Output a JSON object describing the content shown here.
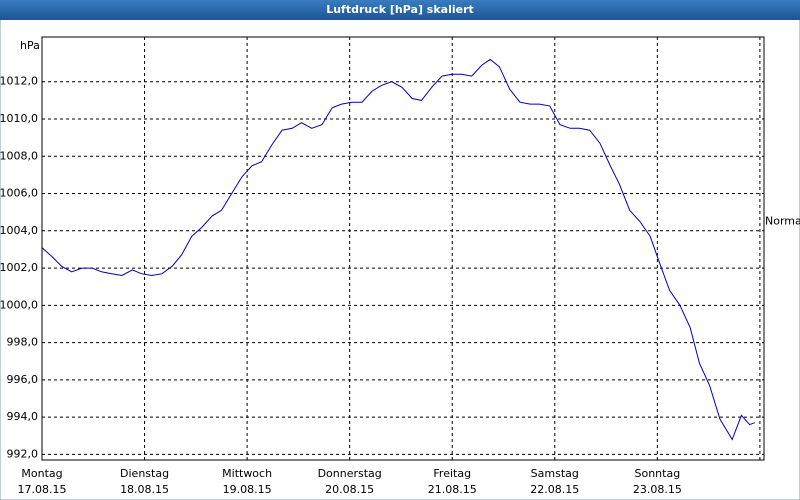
{
  "chart_data": {
    "type": "line",
    "title": "Luftdruck [hPa] skaliert",
    "y_unit_label": "hPa",
    "annotation": {
      "label": "Normal",
      "value": 1004.5
    },
    "xlim": [
      0,
      7.04
    ],
    "ylim": [
      991.7,
      1014.4
    ],
    "xticks": [
      {
        "value": 0,
        "label": "Montag",
        "sublabel": "17.08.15"
      },
      {
        "value": 1,
        "label": "Dienstag",
        "sublabel": "18.08.15"
      },
      {
        "value": 2,
        "label": "Mittwoch",
        "sublabel": "19.08.15"
      },
      {
        "value": 3,
        "label": "Donnerstag",
        "sublabel": "20.08.15"
      },
      {
        "value": 4,
        "label": "Freitag",
        "sublabel": "21.08.15"
      },
      {
        "value": 5,
        "label": "Samstag",
        "sublabel": "22.08.15"
      },
      {
        "value": 6,
        "label": "Sonntag",
        "sublabel": "23.08.15"
      },
      {
        "value": 7
      }
    ],
    "yticks": [
      {
        "value": 992,
        "label": "992,0"
      },
      {
        "value": 994,
        "label": "994,0"
      },
      {
        "value": 996,
        "label": "996,0"
      },
      {
        "value": 998,
        "label": "998,0"
      },
      {
        "value": 1000,
        "label": "1000,0"
      },
      {
        "value": 1002,
        "label": "1002,0"
      },
      {
        "value": 1004,
        "label": "1004,0"
      },
      {
        "value": 1006,
        "label": "1006,0"
      },
      {
        "value": 1008,
        "label": "1008,0"
      },
      {
        "value": 1010,
        "label": "1010,0"
      },
      {
        "value": 1012,
        "label": "1012,0"
      }
    ],
    "grid": true,
    "series": [
      {
        "name": "Luftdruck",
        "color": "#0000c0",
        "x": [
          0,
          0.1,
          0.19,
          0.29,
          0.39,
          0.49,
          0.58,
          0.68,
          0.78,
          0.88,
          0.97,
          1.07,
          1.17,
          1.27,
          1.36,
          1.46,
          1.56,
          1.66,
          1.75,
          1.85,
          1.95,
          2.05,
          2.14,
          2.24,
          2.34,
          2.44,
          2.53,
          2.63,
          2.73,
          2.83,
          2.92,
          3.02,
          3.12,
          3.22,
          3.31,
          3.41,
          3.51,
          3.61,
          3.7,
          3.8,
          3.9,
          4.0,
          4.09,
          4.19,
          4.29,
          4.37,
          4.46,
          4.56,
          4.66,
          4.76,
          4.85,
          4.95,
          5.05,
          5.15,
          5.24,
          5.34,
          5.44,
          5.54,
          5.63,
          5.73,
          5.83,
          5.93,
          6.02,
          6.12,
          6.22,
          6.32,
          6.41,
          6.51,
          6.61,
          6.73,
          6.82,
          6.9,
          6.95
        ],
        "values": [
          1003.1,
          1002.6,
          1002.1,
          1001.8,
          1002.0,
          1002.0,
          1001.8,
          1001.7,
          1001.6,
          1001.9,
          1001.7,
          1001.6,
          1001.7,
          1002.1,
          1002.7,
          1003.7,
          1004.2,
          1004.8,
          1005.1,
          1006.0,
          1006.9,
          1007.5,
          1007.7,
          1008.6,
          1009.4,
          1009.5,
          1009.8,
          1009.5,
          1009.7,
          1010.6,
          1010.8,
          1010.9,
          1010.9,
          1011.5,
          1011.8,
          1012.0,
          1011.7,
          1011.1,
          1011.0,
          1011.7,
          1012.3,
          1012.4,
          1012.4,
          1012.3,
          1012.9,
          1013.2,
          1012.8,
          1011.6,
          1010.9,
          1010.8,
          1010.8,
          1010.7,
          1009.7,
          1009.5,
          1009.5,
          1009.4,
          1008.7,
          1007.5,
          1006.5,
          1005.1,
          1004.5,
          1003.7,
          1002.3,
          1000.8,
          1000.0,
          998.8,
          996.9,
          995.7,
          993.9,
          992.8,
          994.1,
          993.6,
          993.7
        ]
      }
    ]
  }
}
